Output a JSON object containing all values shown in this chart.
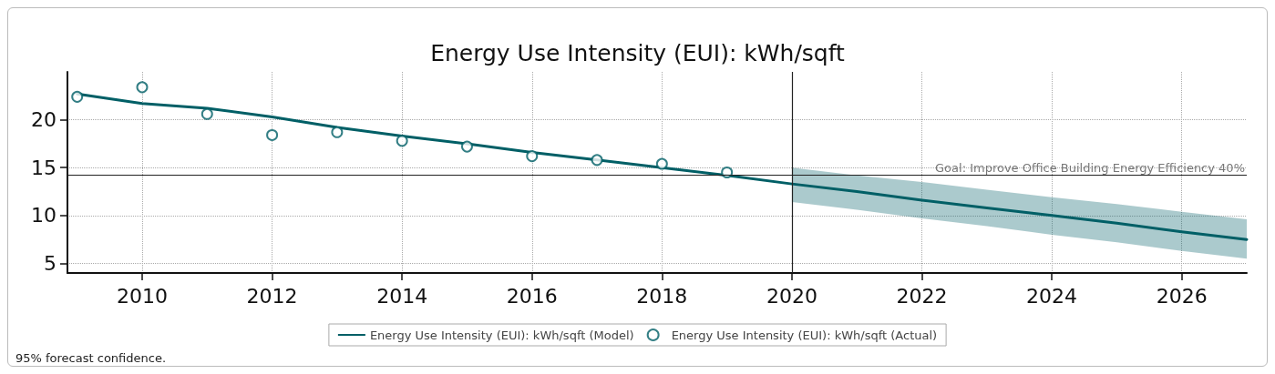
{
  "chart_data": {
    "type": "line",
    "title": "Energy Use Intensity (EUI): kWh/sqft",
    "xlim": [
      2008.85,
      2027
    ],
    "xticks": [
      2010,
      2012,
      2014,
      2016,
      2018,
      2020,
      2022,
      2024,
      2026
    ],
    "ylim": [
      4,
      25
    ],
    "yticks": [
      5,
      10,
      15,
      20
    ],
    "series": [
      {
        "name": "Energy Use Intensity (EUI): kWh/sqft (Model)",
        "color": "#005f66",
        "marker": "none",
        "x": [
          2009,
          2010,
          2011,
          2012,
          2013,
          2014,
          2015,
          2016,
          2017,
          2018,
          2019,
          2020,
          2021,
          2022,
          2023,
          2024,
          2025,
          2026,
          2027
        ],
        "values": [
          22.7,
          21.7,
          21.2,
          20.3,
          19.2,
          18.3,
          17.5,
          16.6,
          15.8,
          15.0,
          14.2,
          13.3,
          12.5,
          11.6,
          10.8,
          10.0,
          9.2,
          8.3,
          7.5
        ],
        "lower": [
          null,
          null,
          null,
          null,
          null,
          null,
          null,
          null,
          null,
          null,
          null,
          11.4,
          10.6,
          9.7,
          8.9,
          8.0,
          7.2,
          6.3,
          5.5
        ],
        "upper": [
          null,
          null,
          null,
          null,
          null,
          null,
          null,
          null,
          null,
          null,
          null,
          15.0,
          14.2,
          13.5,
          12.7,
          11.9,
          11.2,
          10.4,
          9.6
        ]
      },
      {
        "name": "Energy Use Intensity (EUI): kWh/sqft (Actual)",
        "type": "scatter",
        "color": "#005f66",
        "marker": "circle",
        "x": [
          2009,
          2010,
          2011,
          2012,
          2013,
          2014,
          2015,
          2016,
          2017,
          2018,
          2019
        ],
        "values": [
          22.4,
          23.4,
          20.6,
          18.4,
          18.7,
          17.8,
          17.2,
          16.2,
          15.8,
          15.4,
          14.5
        ]
      }
    ],
    "ref_lines": [
      {
        "axis": "y",
        "value": 14.2,
        "label": "Goal: Improve Office Building Energy Efficiency 40%",
        "color": "#222222"
      },
      {
        "axis": "x",
        "value": 2020,
        "color": "#222222"
      }
    ],
    "annotations": [
      "95% forecast confidence."
    ],
    "grid": true,
    "legend": "bottom"
  }
}
